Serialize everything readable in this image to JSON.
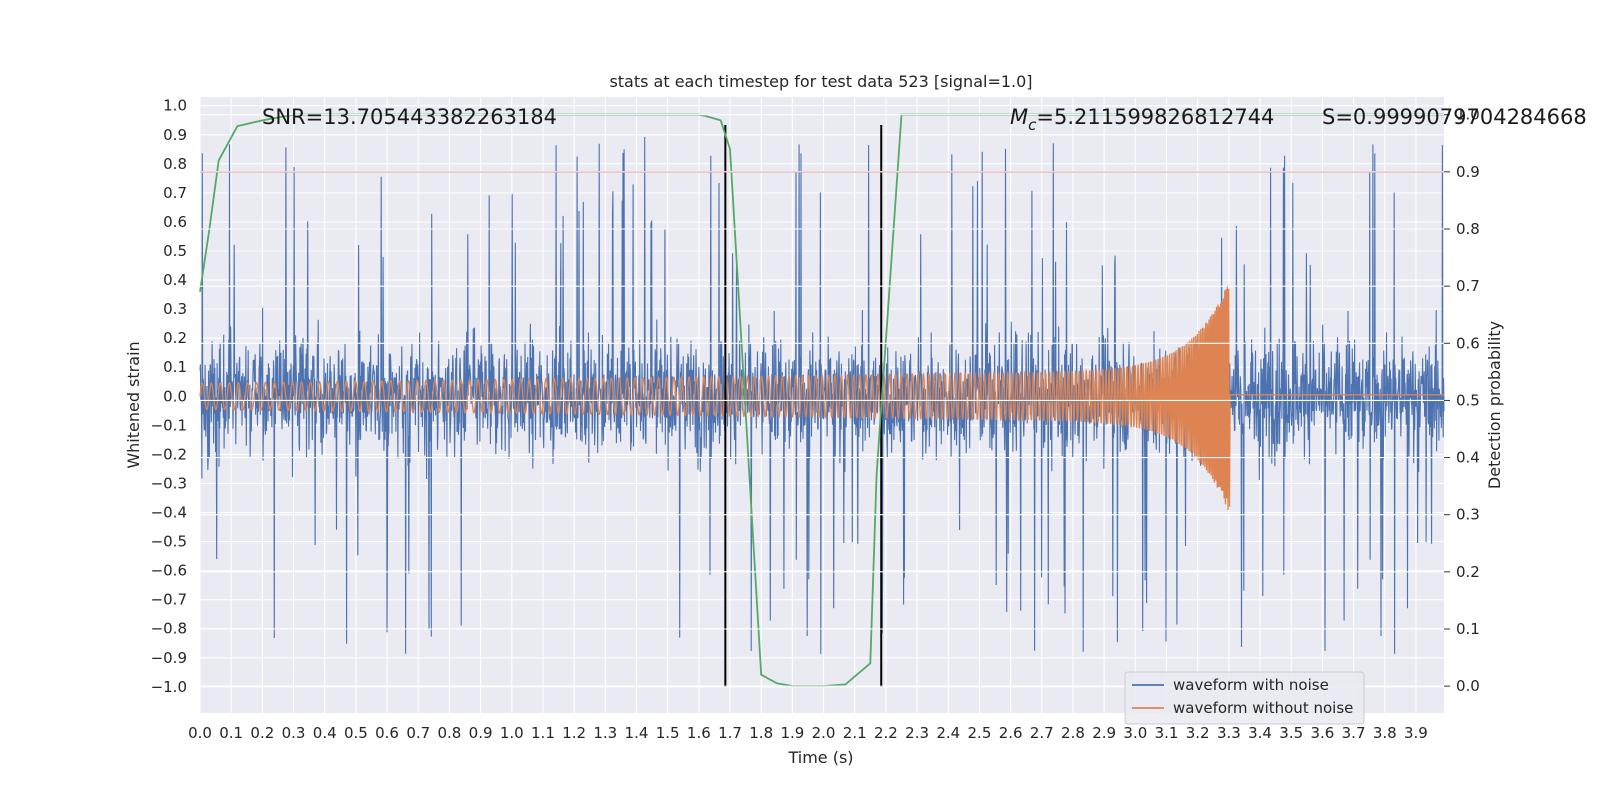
{
  "chart_data": {
    "type": "line",
    "title": "stats at each timestep for test data 523 [signal=1.0]",
    "xlabel": "Time (s)",
    "ylabel": "Whitened strain",
    "y2label": "Detection probability",
    "xlim": [
      0.0,
      3.99
    ],
    "ylim": [
      -1.09,
      1.03
    ],
    "y2lim": [
      -0.047,
      1.031
    ],
    "x_ticks": [
      0.0,
      0.1,
      0.2,
      0.3,
      0.4,
      0.5,
      0.6,
      0.7,
      0.8,
      0.9,
      1.0,
      1.1,
      1.2,
      1.3,
      1.4,
      1.5,
      1.6,
      1.7,
      1.8,
      1.9,
      2.0,
      2.1,
      2.2,
      2.3,
      2.4,
      2.5,
      2.6,
      2.7,
      2.8,
      2.9,
      3.0,
      3.1,
      3.2,
      3.3,
      3.4,
      3.5,
      3.6,
      3.7,
      3.8,
      3.9
    ],
    "x_tick_labels": [
      "0.0",
      "0.1",
      "0.2",
      "0.3",
      "0.4",
      "0.5",
      "0.6",
      "0.7",
      "0.8",
      "0.9",
      "1.0",
      "1.1",
      "1.2",
      "1.3",
      "1.4",
      "1.5",
      "1.6",
      "1.7",
      "1.8",
      "1.9",
      "2.0",
      "2.1",
      "2.2",
      "2.3",
      "2.4",
      "2.5",
      "2.6",
      "2.7",
      "2.8",
      "2.9",
      "3.0",
      "3.1",
      "3.2",
      "3.3",
      "3.4",
      "3.5",
      "3.6",
      "3.7",
      "3.8",
      "3.9"
    ],
    "y_ticks": [
      1.0,
      0.9,
      0.8,
      0.7,
      0.6,
      0.5,
      0.4,
      0.3,
      0.2,
      0.1,
      0.0,
      -0.1,
      -0.2,
      -0.3,
      -0.4,
      -0.5,
      -0.6,
      -0.7,
      -0.8,
      -0.9,
      -1.0
    ],
    "y_tick_labels": [
      "1.0",
      "0.9",
      "0.8",
      "0.7",
      "0.6",
      "0.5",
      "0.4",
      "0.3",
      "0.2",
      "0.1",
      "0.0",
      "−0.1",
      "−0.2",
      "−0.3",
      "−0.4",
      "−0.5",
      "−0.6",
      "−0.7",
      "−0.8",
      "−0.9",
      "−1.0"
    ],
    "y2_ticks": [
      1.0,
      0.9,
      0.8,
      0.7,
      0.6,
      0.5,
      0.4,
      0.3,
      0.2,
      0.1,
      0.0
    ],
    "y2_tick_labels": [
      "1.0",
      "0.9",
      "0.8",
      "0.7",
      "0.6",
      "0.5",
      "0.4",
      "0.3",
      "0.2",
      "0.1",
      "0.0"
    ],
    "noisy_waveform": {
      "name": "waveform with noise",
      "color": "#4c72b0",
      "t_start": 0.0,
      "t_end": 3.99,
      "amplitude_range": [
        -0.99,
        0.94
      ]
    },
    "clean_waveform": {
      "name": "waveform without noise",
      "color": "#dd8452",
      "t_start": 0.0,
      "t_merge": 3.3,
      "t_end": 3.99,
      "start_amplitude": 0.045,
      "peak_amplitude": 0.4,
      "start_period": 0.029,
      "end_period": 0.004
    },
    "detection_probability": {
      "name": "detection probability",
      "color": "#55a868",
      "axis": "right",
      "x": [
        0.0,
        0.03,
        0.06,
        0.12,
        0.2,
        0.3,
        0.4,
        0.6,
        0.8,
        1.0,
        1.2,
        1.4,
        1.6,
        1.62,
        1.67,
        1.7,
        1.8,
        1.85,
        1.9,
        2.0,
        2.07,
        2.15,
        2.17,
        2.25,
        2.3,
        2.5,
        3.0,
        3.5,
        3.99
      ],
      "y": [
        0.69,
        0.8,
        0.92,
        0.98,
        0.99,
        1.0,
        1.0,
        1.0,
        1.0,
        1.0,
        1.0,
        1.0,
        1.0,
        0.998,
        0.99,
        0.94,
        0.02,
        0.005,
        0.0,
        0.0,
        0.003,
        0.04,
        0.37,
        1.0,
        1.0,
        1.0,
        1.0,
        1.0,
        1.0
      ]
    },
    "threshold_line": {
      "y2": 0.9,
      "color": "#c44e52"
    },
    "vertical_markers": [
      1.685,
      2.185
    ],
    "annotations": {
      "snr": "SNR=13.705443382263184",
      "mc_symbol": "M",
      "mc_sub": "c",
      "mc_value": "=5.211599826812744",
      "s": "S=0.9999079704284668"
    },
    "legend": {
      "position": "bottom-right",
      "entries": [
        {
          "label": "waveform with noise",
          "color": "#4c72b0"
        },
        {
          "label": "waveform without noise",
          "color": "#dd8452"
        }
      ]
    },
    "colors": {
      "axes_bg": "#eaeaf2",
      "grid": "#ffffff",
      "marker": "#000000"
    }
  }
}
